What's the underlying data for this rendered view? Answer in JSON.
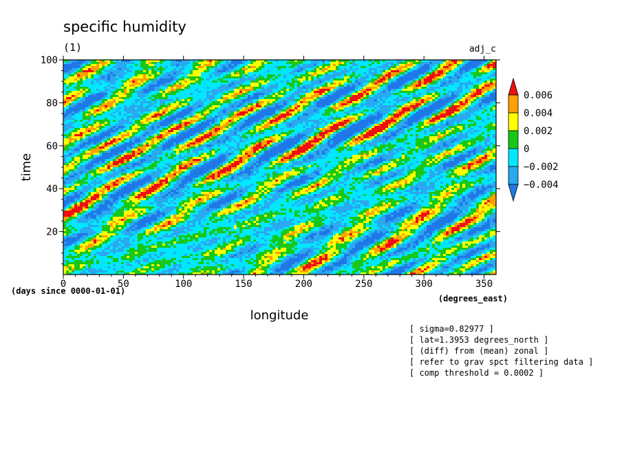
{
  "chart_data": {
    "type": "heatmap",
    "title": "specific humidity",
    "subtitle": "(1)",
    "label_right": "adj_c",
    "xlabel": "longitude",
    "ylabel": "time",
    "x_units": "(degrees_east)",
    "y_units": "(days since 0000-01-01)",
    "xlim": [
      0,
      360
    ],
    "ylim": [
      0,
      100
    ],
    "x_ticks": [
      0,
      50,
      100,
      150,
      200,
      250,
      300,
      350
    ],
    "y_ticks": [
      20,
      40,
      60,
      80,
      100
    ],
    "colorbar": {
      "levels": [
        -0.004,
        -0.002,
        0,
        0.002,
        0.004,
        0.006
      ],
      "labels": [
        "−0.004",
        "−0.002",
        "0",
        "0.002",
        "0.004",
        "0.006"
      ],
      "colors": [
        "#1f78e8",
        "#2aa8f0",
        "#00e8ff",
        "#18c818",
        "#ffff00",
        "#ffa000",
        "#ee1010"
      ],
      "extend": "both"
    },
    "field_description_colors": {
      "negative_strong": "#1f78e8",
      "near_zero": "#00e8ff",
      "positive_strong": "#ee1010"
    },
    "annotations": [
      "[ sigma=0.82977 ]",
      "[ lat=1.3953 degrees_north ]",
      "[ (diff) from (mean) zonal ]",
      "[ refer to grav spct filtering data ]",
      "[ comp threshold = 0.0002 ]"
    ]
  }
}
